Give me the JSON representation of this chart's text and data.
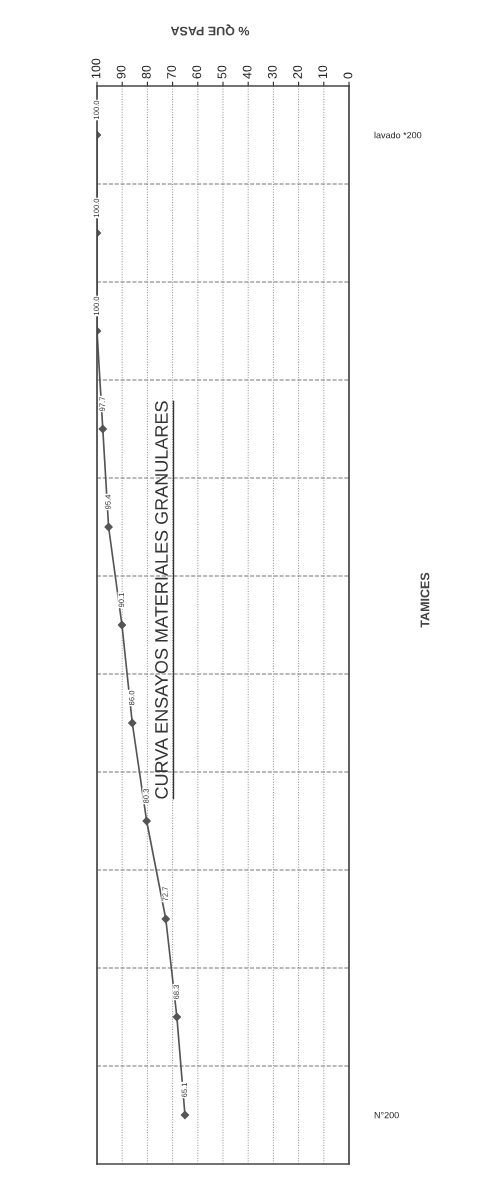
{
  "chart_data": {
    "type": "line",
    "orientation": "horizontal",
    "title": "CURVA ENSAYOS MATERIALES GRANULARES",
    "xlabel": "% QUE PASA",
    "ylabel": "TAMICES",
    "categories": [
      "lavado *200",
      null,
      null,
      null,
      null,
      null,
      null,
      null,
      null,
      null,
      "N°200"
    ],
    "series": [
      {
        "color": "#555555",
        "values": [
          100.0,
          100.0,
          100.0,
          97.7,
          95.4,
          90.1,
          86.0,
          80.3,
          72.7,
          68.3,
          65.1
        ]
      }
    ],
    "xlim": [
      100,
      0
    ],
    "xticks": [
      0,
      10,
      20,
      30,
      40,
      50,
      60,
      70,
      80,
      90,
      100
    ],
    "value_labels": [
      "100.0",
      "100.0",
      "100.0",
      "97.7",
      "95.4",
      "90.1",
      "86.0",
      "80.3",
      "72.7",
      "68.3",
      "65.1"
    ],
    "grid": true,
    "marker": "diamond",
    "line_style": "solid"
  }
}
